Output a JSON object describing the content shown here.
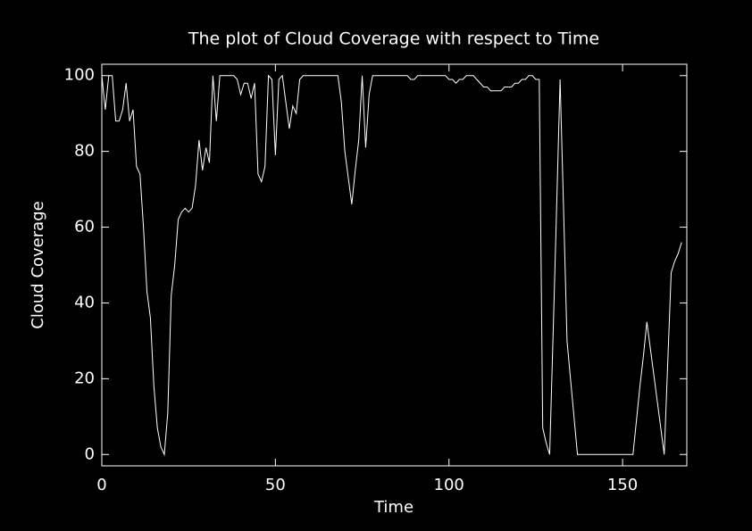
{
  "chart_data": {
    "type": "line",
    "title": "The plot of Cloud Coverage with respect to Time",
    "xlabel": "Time",
    "ylabel": "Cloud Coverage",
    "x": [
      0,
      1,
      2,
      3,
      4,
      5,
      6,
      7,
      8,
      9,
      10,
      11,
      12,
      13,
      14,
      15,
      16,
      17,
      18,
      19,
      20,
      21,
      22,
      23,
      24,
      25,
      26,
      27,
      28,
      29,
      30,
      31,
      32,
      33,
      34,
      35,
      36,
      37,
      38,
      39,
      40,
      41,
      42,
      43,
      44,
      45,
      46,
      47,
      48,
      49,
      50,
      51,
      52,
      53,
      54,
      55,
      56,
      57,
      58,
      59,
      60,
      61,
      62,
      63,
      64,
      65,
      66,
      67,
      68,
      69,
      70,
      71,
      72,
      73,
      74,
      75,
      76,
      77,
      78,
      79,
      80,
      81,
      82,
      83,
      84,
      85,
      86,
      87,
      88,
      89,
      90,
      91,
      92,
      93,
      94,
      95,
      96,
      97,
      98,
      99,
      100,
      101,
      102,
      103,
      104,
      105,
      106,
      107,
      108,
      109,
      110,
      111,
      112,
      113,
      114,
      115,
      116,
      117,
      118,
      119,
      120,
      121,
      122,
      123,
      124,
      125,
      126,
      127,
      128,
      129,
      130,
      131,
      132,
      133,
      134,
      135,
      136,
      137,
      138,
      139,
      140,
      141,
      142,
      143,
      144,
      145,
      146,
      147,
      148,
      149,
      150,
      151,
      152,
      153,
      154,
      155,
      156,
      157,
      158,
      159,
      160,
      161,
      162,
      163,
      164,
      165,
      166,
      167
    ],
    "series": [
      {
        "color": "#ffffff",
        "values": [
          100,
          91,
          100,
          100,
          88,
          88,
          91,
          98,
          88,
          91,
          76,
          74,
          60,
          43,
          36,
          18,
          7,
          2,
          0,
          11,
          42,
          50,
          62,
          64,
          65,
          64,
          65,
          71,
          83,
          75,
          81,
          77,
          100,
          88,
          100,
          100,
          100,
          100,
          100,
          99,
          95,
          98,
          98,
          94,
          98,
          74,
          72,
          76,
          100,
          99,
          79,
          99,
          100,
          93,
          86,
          92,
          90,
          99,
          100,
          100,
          100,
          100,
          100,
          100,
          100,
          100,
          100,
          100,
          100,
          93,
          80,
          73,
          66,
          75,
          83,
          100,
          81,
          95,
          100,
          100,
          100,
          100,
          100,
          100,
          100,
          100,
          100,
          100,
          100,
          99,
          99,
          100,
          100,
          100,
          100,
          100,
          100,
          100,
          100,
          100,
          99,
          99,
          98,
          99,
          99,
          100,
          100,
          100,
          99,
          98,
          97,
          97,
          96,
          96,
          96,
          96,
          97,
          97,
          97,
          98,
          98,
          99,
          99,
          100,
          100,
          99,
          99,
          7,
          3,
          0,
          32,
          65,
          99,
          65,
          30,
          20,
          10,
          0,
          0,
          0,
          0,
          0,
          0,
          0,
          0,
          0,
          0,
          0,
          0,
          0,
          0,
          0,
          0,
          0,
          9,
          18,
          26,
          35,
          28,
          21,
          14,
          7,
          0,
          24,
          48,
          51,
          53,
          56
        ]
      }
    ],
    "xlim": [
      0,
      168.5
    ],
    "ylim": [
      -3,
      103
    ],
    "xticks": [
      0,
      50,
      100,
      150
    ],
    "yticks": [
      0,
      20,
      40,
      60,
      80,
      100
    ]
  }
}
